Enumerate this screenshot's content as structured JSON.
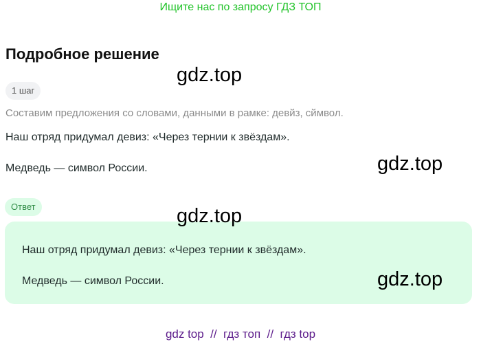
{
  "banner": "Ищите нас по запросу ГДЗ ТОП",
  "title": "Подробное решение",
  "step_label": "1 шаг",
  "hint": "Составим предложения со словами, данными в рамке: девйз, сймвол.",
  "solution": [
    "Наш отряд придумал девиз: «Через тернии к звёздам».",
    "Медведь — символ России."
  ],
  "answer_label": "Ответ",
  "answer": [
    "Наш отряд придумал девиз: «Через тернии к звёздам».",
    "Медведь — символ России."
  ],
  "watermarks": [
    "gdz.top",
    "gdz.top",
    "gdz.top",
    "gdz.top"
  ],
  "footer": "gdz top  //  гдз топ  //  гдз top"
}
